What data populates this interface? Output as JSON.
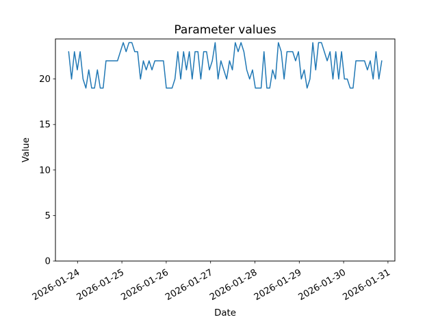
{
  "figure": {
    "background": "#ffffff"
  },
  "chart_data": {
    "type": "line",
    "title": "Parameter values",
    "xlabel": "Date",
    "ylabel": "Value",
    "x_tick_labels": [
      "2026-01-24",
      "2026-01-25",
      "2026-01-26",
      "2026-01-27",
      "2026-01-28",
      "2026-01-29",
      "2026-01-30",
      "2026-01-31"
    ],
    "y_ticks": [
      0,
      5,
      10,
      15,
      20
    ],
    "ylim": [
      0,
      24.4
    ],
    "x_start_day_offset": -0.2,
    "x_end_day_offset": 6.86,
    "grid": false,
    "legend": null,
    "axis_color": "#000000",
    "series": [
      {
        "name": "Parameter",
        "color": "#1f77b4",
        "values": [
          23,
          20,
          23,
          21,
          23,
          20,
          19,
          21,
          19,
          19,
          21,
          19,
          19,
          22,
          22,
          22,
          22,
          22,
          23,
          24,
          23,
          24,
          24,
          23,
          23,
          20,
          22,
          21,
          22,
          21,
          22,
          22,
          22,
          22,
          19,
          19,
          19,
          20,
          23,
          20,
          23,
          21,
          23,
          20,
          23,
          23,
          20,
          23,
          23,
          21,
          22,
          24,
          20,
          22,
          21,
          20,
          22,
          21,
          24,
          23,
          24,
          23,
          21,
          20,
          21,
          19,
          19,
          19,
          23,
          19,
          19,
          21,
          20,
          24,
          23,
          20,
          23,
          23,
          23,
          22,
          23,
          20,
          21,
          19,
          20,
          24,
          21,
          24,
          24,
          23,
          22,
          23,
          20,
          23,
          20,
          23,
          20,
          20,
          19,
          19,
          22,
          22,
          22,
          22,
          21,
          22,
          20,
          23,
          20,
          22
        ]
      }
    ]
  }
}
